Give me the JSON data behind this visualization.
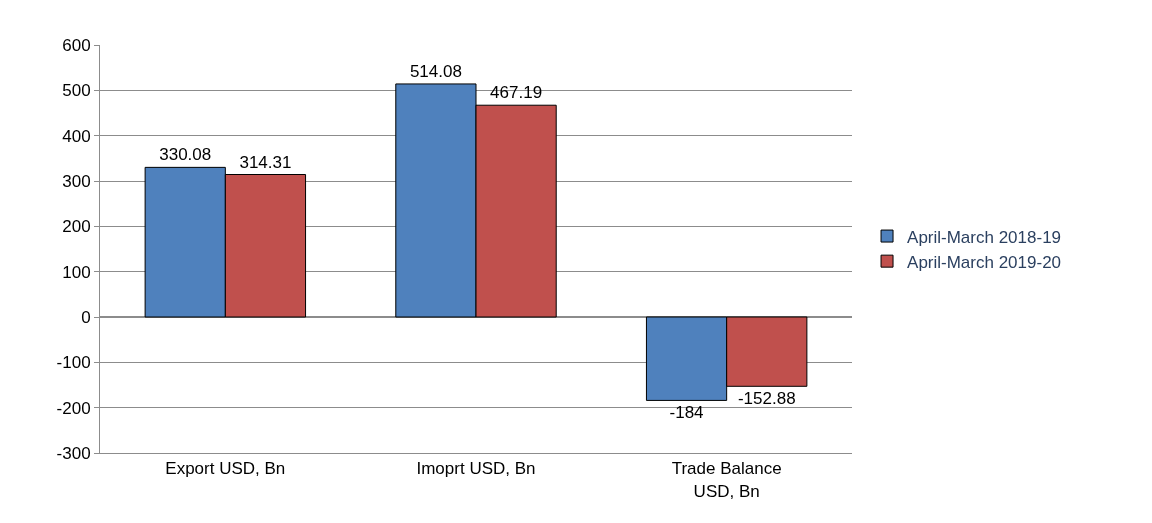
{
  "chart_data": {
    "type": "bar",
    "categories": [
      "Export USD, Bn",
      "Imoprt USD, Bn",
      "Trade Balance USD, Bn"
    ],
    "series": [
      {
        "name": "April-March 2018-19",
        "color": "#4f81bd",
        "values": [
          330.08,
          514.08,
          -184
        ]
      },
      {
        "name": "April-March 2019-20",
        "color": "#c0504d",
        "values": [
          314.31,
          467.19,
          -152.88
        ]
      }
    ],
    "ylim": [
      -300,
      600
    ],
    "yticks": [
      -300,
      -200,
      -100,
      0,
      100,
      200,
      300,
      400,
      500,
      600
    ],
    "grid": "y",
    "legend": "right",
    "data_labels": true
  }
}
